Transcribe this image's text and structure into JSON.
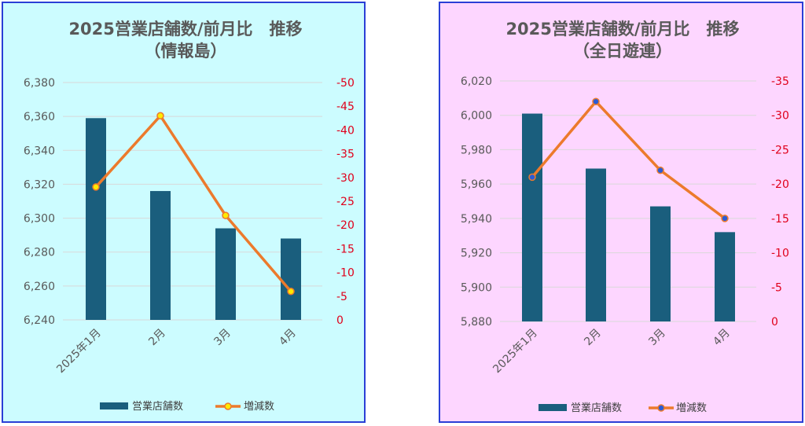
{
  "colors": {
    "bar": "#1a5e7d",
    "line": "#ec7a2c",
    "marker_fill_left": "#ffea00",
    "marker_fill_right": "#2b5bd6",
    "right_axis_text": "#e0001b",
    "axis_text": "#595959",
    "grid": "#d9d9d9"
  },
  "chart_data": [
    {
      "type": "bar+line",
      "title": "2025営業店舗数/前月比　推移",
      "subtitle": "（情報島）",
      "categories": [
        "2025年1月",
        "2月",
        "3月",
        "4月"
      ],
      "series": [
        {
          "name": "営業店舗数",
          "type": "bar",
          "axis": "left",
          "values": [
            6359,
            6316,
            6294,
            6288
          ]
        },
        {
          "name": "増減数",
          "type": "line",
          "axis": "right",
          "values": [
            -28,
            -43,
            -22,
            -6
          ]
        }
      ],
      "y_left": {
        "min": 6240,
        "max": 6380,
        "step": 20,
        "tick_labels": [
          "6,240",
          "6,260",
          "6,280",
          "6,300",
          "6,320",
          "6,340",
          "6,360",
          "6,380"
        ]
      },
      "y_right": {
        "min": 0,
        "max": -50,
        "step": -5,
        "reversed": true,
        "tick_labels": [
          "0",
          "-5",
          "-10",
          "-15",
          "-20",
          "-25",
          "-30",
          "-35",
          "-40",
          "-45",
          "-50"
        ]
      },
      "grid": true,
      "legend": "bottom-center"
    },
    {
      "type": "bar+line",
      "title": "2025営業店舗数/前月比　推移",
      "subtitle": "（全日遊連）",
      "categories": [
        "2025年1月",
        "2月",
        "3月",
        "4月"
      ],
      "series": [
        {
          "name": "営業店舗数",
          "type": "bar",
          "axis": "left",
          "values": [
            6001,
            5969,
            5947,
            5932
          ]
        },
        {
          "name": "増減数",
          "type": "line",
          "axis": "right",
          "values": [
            -21,
            -32,
            -22,
            -15
          ]
        }
      ],
      "y_left": {
        "min": 5880,
        "max": 6020,
        "step": 20,
        "tick_labels": [
          "5,880",
          "5,900",
          "5,920",
          "5,940",
          "5,960",
          "5,980",
          "6,000",
          "6,020"
        ]
      },
      "y_right": {
        "min": 0,
        "max": -35,
        "step": -5,
        "reversed": true,
        "tick_labels": [
          "0",
          "-5",
          "-10",
          "-15",
          "-20",
          "-25",
          "-30",
          "-35"
        ]
      },
      "grid": true,
      "legend": "bottom-center"
    }
  ]
}
